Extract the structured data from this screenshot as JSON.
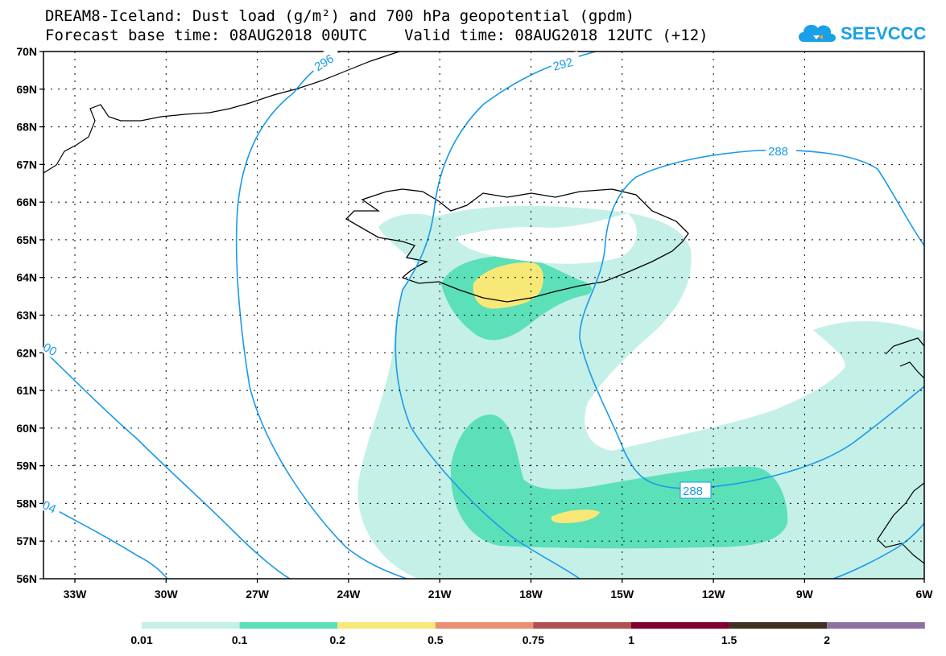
{
  "header": {
    "title_line1": "DREAM8-Iceland: Dust load (g/m²) and 700 hPa geopotential (gpdm)",
    "title_line2": "Forecast base time: 08AUG2018 00UTC    Valid time: 08AUG2018 12UTC (+12)",
    "logo_text": "SEEVCCC"
  },
  "map": {
    "lat_labels": [
      "70N",
      "69N",
      "68N",
      "67N",
      "66N",
      "65N",
      "64N",
      "63N",
      "62N",
      "61N",
      "60N",
      "59N",
      "58N",
      "57N",
      "56N"
    ],
    "lon_labels": [
      "33W",
      "30W",
      "27W",
      "24W",
      "21W",
      "18W",
      "15W",
      "12W",
      "9W",
      "6W"
    ],
    "contour_labels": [
      "296",
      "292",
      "288",
      "288",
      "00",
      "04"
    ]
  },
  "legend": {
    "thresholds": [
      "0.01",
      "0.1",
      "0.2",
      "0.5",
      "0.75",
      "1",
      "1.5",
      "2"
    ],
    "colors": [
      "#c4f0e8",
      "#5ce0b8",
      "#f8e878",
      "#e89070",
      "#b05050",
      "#800030",
      "#403020",
      "#9070a0"
    ]
  }
}
